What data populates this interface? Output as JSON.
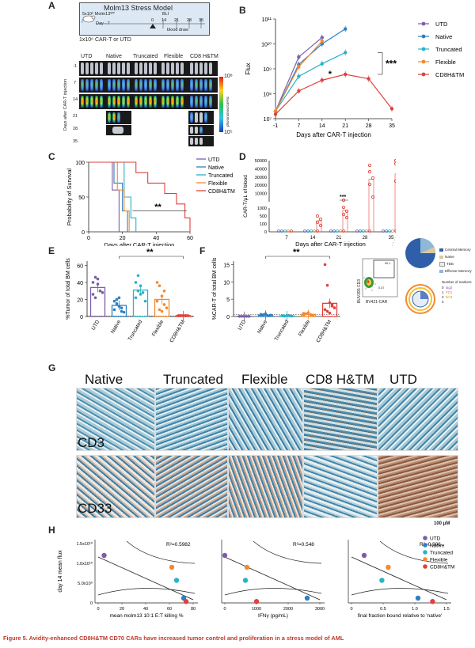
{
  "panels": {
    "A": "A",
    "B": "B",
    "C": "C",
    "D": "D",
    "E": "E",
    "F": "F",
    "G": "G",
    "H": "H"
  },
  "colors": {
    "UTD": "#7b5ea7",
    "Native": "#2f7fc1",
    "Truncated": "#27b3c8",
    "Flexible": "#f28a33",
    "CD8H&TM": "#e0413c"
  },
  "panel_a": {
    "title": "Molm13 Stress Model",
    "inj_label": "5x10⁵ Molm13ᵂᵀ",
    "day_label": "Day - 7",
    "bli_label": "BLI",
    "bottom_label": "1x10⁶ CAR-T or UTD",
    "blood_label": "blood draw",
    "timeline_days": [
      "0",
      "14",
      "21",
      "28",
      "35"
    ],
    "groups": [
      "UTD",
      "Native",
      "Truncated",
      "Flexible",
      "CD8 H&TM"
    ],
    "rows": [
      "-1",
      "7",
      "14",
      "21",
      "28",
      "35"
    ],
    "yaxis": "Days after CAR-T injection",
    "scale_top": "10⁸",
    "scale_bottom": "10⁵",
    "scale_unit": "photons/sec/cm²/sr"
  },
  "panel_b_chart": {
    "type": "line",
    "xlabel": "Days after CAR-T injection",
    "ylabel": "Flux",
    "log_y": true,
    "ylim": [
      10000000.0,
      100000000000.0
    ],
    "x_ticks": [
      "-1",
      "7",
      "14",
      "21",
      "28",
      "35"
    ],
    "y_ticks": [
      "10⁷",
      "10⁸",
      "10⁹",
      "10¹⁰",
      "10¹¹"
    ],
    "annot1": "***",
    "annot2": "*",
    "series": [
      {
        "name": "UTD",
        "x": [
          -1,
          7,
          14
        ],
        "y": [
          20000000.0,
          3000000000.0,
          18000000000.0
        ]
      },
      {
        "name": "Native",
        "x": [
          -1,
          7,
          14,
          21
        ],
        "y": [
          20000000.0,
          1500000000.0,
          10000000000.0,
          40000000000.0
        ]
      },
      {
        "name": "Truncated",
        "x": [
          -1,
          7,
          14,
          21
        ],
        "y": [
          20000000.0,
          500000000.0,
          1600000000.0,
          4500000000.0
        ]
      },
      {
        "name": "Flexible",
        "x": [
          -1,
          7,
          14
        ],
        "y": [
          20000000.0,
          1200000000.0,
          13000000000.0
        ]
      },
      {
        "name": "CD8H&TM",
        "x": [
          -1,
          7,
          14,
          21,
          28,
          35
        ],
        "y": [
          15000000.0,
          130000000.0,
          350000000.0,
          600000000.0,
          400000000.0,
          25000000.0
        ]
      }
    ],
    "legend": [
      "UTD",
      "Native",
      "Truncated",
      "Flexible",
      "CD8H&TM"
    ]
  },
  "panel_c_chart": {
    "type": "line",
    "xlabel": "Days after CAR-T injection",
    "ylabel": "Probability of Survival",
    "x_ticks": [
      "0",
      "20",
      "40",
      "60"
    ],
    "y_ticks": [
      "0",
      "50",
      "100"
    ],
    "annot": "**",
    "series": [
      {
        "name": "UTD",
        "points": [
          [
            0,
            100
          ],
          [
            14,
            100
          ],
          [
            14,
            60
          ],
          [
            18,
            60
          ],
          [
            18,
            0
          ]
        ]
      },
      {
        "name": "Native",
        "points": [
          [
            0,
            100
          ],
          [
            15,
            100
          ],
          [
            15,
            70
          ],
          [
            20,
            70
          ],
          [
            20,
            30
          ],
          [
            23,
            30
          ],
          [
            23,
            0
          ]
        ]
      },
      {
        "name": "Truncated",
        "points": [
          [
            0,
            100
          ],
          [
            21,
            100
          ],
          [
            21,
            50
          ],
          [
            25,
            50
          ],
          [
            25,
            20
          ],
          [
            28,
            20
          ],
          [
            28,
            0
          ]
        ]
      },
      {
        "name": "Flexible",
        "points": [
          [
            0,
            100
          ],
          [
            17,
            100
          ],
          [
            17,
            60
          ],
          [
            21,
            60
          ],
          [
            21,
            30
          ],
          [
            24,
            30
          ],
          [
            24,
            0
          ]
        ]
      },
      {
        "name": "CD8H&TM",
        "points": [
          [
            0,
            100
          ],
          [
            28,
            100
          ],
          [
            28,
            85
          ],
          [
            35,
            85
          ],
          [
            35,
            70
          ],
          [
            45,
            70
          ],
          [
            45,
            55
          ],
          [
            52,
            55
          ],
          [
            52,
            40
          ],
          [
            57,
            40
          ],
          [
            57,
            20
          ],
          [
            60,
            20
          ],
          [
            60,
            0
          ]
        ]
      }
    ],
    "legend": [
      "UTD",
      "Native",
      "Truncated",
      "Flexible",
      "CD8H&TM"
    ]
  },
  "panel_d": {
    "ylabel": "CAR-T/μL of blood",
    "xlabel": "Days after CAR-T injection",
    "x_ticks": [
      "7",
      "14",
      "21",
      "28",
      "35"
    ],
    "y_ticks_top": [
      "10000",
      "20000",
      "30000",
      "40000",
      "50000"
    ],
    "y_ticks_bottom": [
      "0",
      "100",
      "500",
      "1000"
    ],
    "annot": "***"
  },
  "pie": {
    "legend": [
      "Central Memory",
      "Naive",
      "TDE",
      "Effector Memory"
    ],
    "legend_colors": [
      "#2f5fa8",
      "#d8c9a4",
      "#f2ece0",
      "#8fb8d8"
    ],
    "ring_title": "Number of markers",
    "ring_legend": [
      "0",
      "1",
      "2",
      "3"
    ],
    "ring_marker_legend": [
      "lag3",
      "PD1",
      "tim3"
    ]
  },
  "flow": {
    "y_axis": "BUV395 CD3",
    "x_axis": "BV421-CAR",
    "gate_top": "99.1",
    "gate_bottom": "0.37"
  },
  "panel_e": {
    "ylabel": "%Tumor of total BM cells",
    "y_ticks": [
      "0",
      "20",
      "40",
      "60"
    ],
    "categories": [
      "UTD",
      "Native",
      "Truncated",
      "Flexible",
      "CD8H&TM"
    ],
    "means": [
      34,
      13,
      31,
      20,
      1
    ],
    "annot": "**"
  },
  "panel_f": {
    "ylabel": "%CAR-T of total BM cells",
    "y_ticks": [
      "0",
      "5",
      "10",
      "15"
    ],
    "categories": [
      "UTD",
      "Native",
      "Truncated",
      "Flexible",
      "CD8H&TM"
    ],
    "means": [
      0.05,
      0.4,
      0.2,
      0.6,
      3.8
    ],
    "annot": "**"
  },
  "panel_g": {
    "columns": [
      "Native",
      "Truncated",
      "Flexible",
      "CD8 H&TM",
      "UTD"
    ],
    "row1": "CD3",
    "row2": "CD33",
    "scale": "100 μM"
  },
  "panel_h": {
    "ylabel": "day 14 mean flux",
    "y_ticks": [
      "0",
      "5.0x10⁹",
      "1.0x10¹⁰",
      "1.5x10¹⁰"
    ],
    "plots": [
      {
        "xlabel": "mean molm13 10:1 E:T killing %",
        "r2": "R²=0.5982",
        "x_ticks": [
          "0",
          "20",
          "40",
          "60",
          "80"
        ]
      },
      {
        "xlabel": "IFNγ (pg/mL)",
        "r2": "R²=0.548",
        "x_ticks": [
          "0",
          "1000",
          "2000",
          "3000"
        ]
      },
      {
        "xlabel": "final fraction bound relative to 'native'",
        "r2": "R²=0.906",
        "x_ticks": [
          "0",
          "0.5",
          "1.0",
          "1.5"
        ]
      }
    ],
    "legend": [
      "UTD",
      "Native",
      "Truncated",
      "Flexible",
      "CD8H&TM"
    ]
  },
  "caption": "Figure 5.  Avidity-enhanced CD8H&TM CD70 CARs have increased tumor control and proliferation in a stress model of AML"
}
